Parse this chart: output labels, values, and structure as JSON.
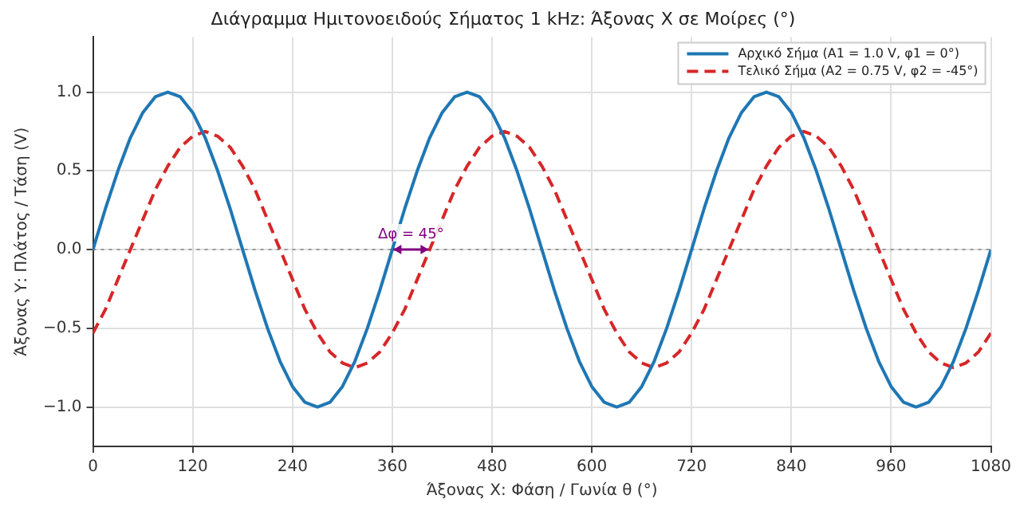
{
  "chart_data": {
    "type": "line",
    "title": "Διάγραμμα Ημιτονοειδούς Σήματος 1 kHz: Άξονας Χ σε Μοίρες (°)",
    "xlabel": "Άξονας Χ: Φάση / Γωνία θ (°)",
    "ylabel": "Άξονας Υ: Πλάτος / Τάση (V)",
    "x": [
      0,
      15,
      30,
      45,
      60,
      75,
      90,
      105,
      120,
      135,
      150,
      165,
      180,
      195,
      210,
      225,
      240,
      255,
      270,
      285,
      300,
      315,
      330,
      345,
      360,
      375,
      390,
      405,
      420,
      435,
      450,
      465,
      480,
      495,
      510,
      525,
      540,
      555,
      570,
      585,
      600,
      615,
      630,
      645,
      660,
      675,
      690,
      705,
      720,
      735,
      750,
      765,
      780,
      795,
      810,
      825,
      840,
      855,
      870,
      885,
      900,
      915,
      930,
      945,
      960,
      975,
      990,
      1005,
      1020,
      1035,
      1050,
      1065,
      1080
    ],
    "series": [
      {
        "name": "Αρχικό Σήμα (A1 = 1.0 V, φ1 = 0°)",
        "color": "#1f77b4",
        "line_style": "solid",
        "values": [
          0,
          0.26,
          0.5,
          0.71,
          0.87,
          0.97,
          1,
          0.97,
          0.87,
          0.71,
          0.5,
          0.26,
          0,
          -0.26,
          -0.5,
          -0.71,
          -0.87,
          -0.97,
          -1,
          -0.97,
          -0.87,
          -0.71,
          -0.5,
          -0.26,
          0,
          0.26,
          0.5,
          0.71,
          0.87,
          0.97,
          1,
          0.97,
          0.87,
          0.71,
          0.5,
          0.26,
          0,
          -0.26,
          -0.5,
          -0.71,
          -0.87,
          -0.97,
          -1,
          -0.97,
          -0.87,
          -0.71,
          -0.5,
          -0.26,
          0,
          0.26,
          0.5,
          0.71,
          0.87,
          0.97,
          1,
          0.97,
          0.87,
          0.71,
          0.5,
          0.26,
          0,
          -0.26,
          -0.5,
          -0.71,
          -0.87,
          -0.97,
          -1,
          -0.97,
          -0.87,
          -0.71,
          -0.5,
          -0.26,
          0
        ]
      },
      {
        "name": "Τελικό Σήμα (A2 = 0.75 V, φ2 = -45°)",
        "color": "#d62728",
        "line_style": "dashed",
        "values": [
          -0.53,
          -0.38,
          -0.19,
          0,
          0.19,
          0.38,
          0.53,
          0.65,
          0.72,
          0.75,
          0.72,
          0.65,
          0.53,
          0.38,
          0.19,
          0,
          -0.19,
          -0.38,
          -0.53,
          -0.65,
          -0.72,
          -0.75,
          -0.72,
          -0.65,
          -0.53,
          -0.38,
          -0.19,
          0,
          0.19,
          0.38,
          0.53,
          0.65,
          0.72,
          0.75,
          0.72,
          0.65,
          0.53,
          0.38,
          0.19,
          0,
          -0.19,
          -0.38,
          -0.53,
          -0.65,
          -0.72,
          -0.75,
          -0.72,
          -0.65,
          -0.53,
          -0.38,
          -0.19,
          0,
          0.19,
          0.38,
          0.53,
          0.65,
          0.72,
          0.75,
          0.72,
          0.65,
          0.53,
          0.38,
          0.19,
          0,
          -0.19,
          -0.38,
          -0.53,
          -0.65,
          -0.72,
          -0.75,
          -0.72,
          -0.65,
          -0.53
        ]
      }
    ],
    "xlim": [
      0,
      1080
    ],
    "xticks": [
      0,
      120,
      240,
      360,
      480,
      600,
      720,
      840,
      960,
      1080
    ],
    "ylim": [
      -1.25,
      1.35
    ],
    "yticks": [
      {
        "value": -1,
        "label": "−1.0"
      },
      {
        "value": -0.5,
        "label": "−0.5"
      },
      {
        "value": 0,
        "label": "0.0"
      },
      {
        "value": 0.5,
        "label": "0.5"
      },
      {
        "value": 1,
        "label": "1.0"
      }
    ],
    "ref_lines": [
      {
        "axis": "y",
        "value": 0,
        "color": "#999999",
        "line_style": "dotted"
      }
    ],
    "annotations": [
      {
        "text": "Δφ = 45°",
        "x": 382.5,
        "y": 0
      }
    ],
    "grid": true,
    "legend": "top right",
    "marker": "none"
  }
}
